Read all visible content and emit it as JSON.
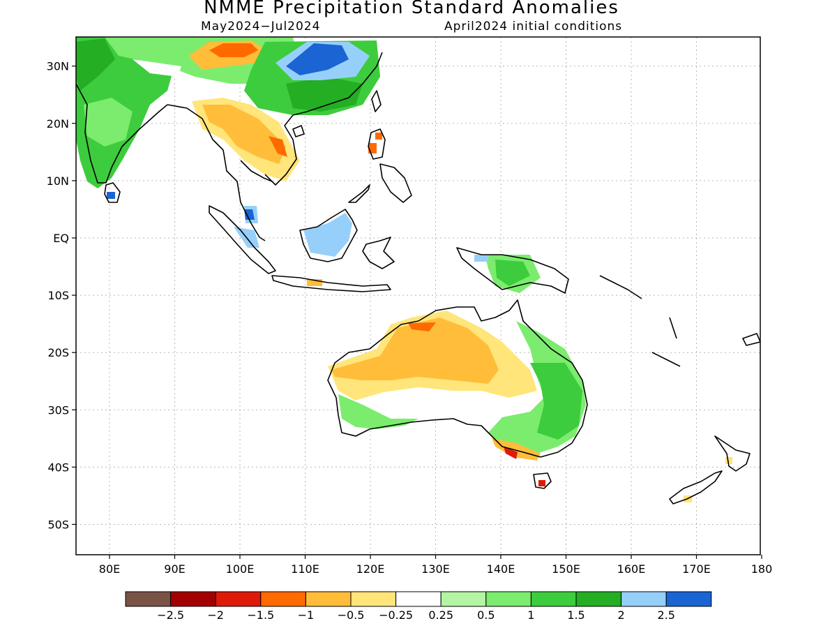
{
  "title": "NMME Precipitation Standard Anomalies",
  "period": "May2024−Jul2024",
  "init": "April2024 initial conditions",
  "lon_labels": [
    "80E",
    "90E",
    "100E",
    "110E",
    "120E",
    "130E",
    "140E",
    "150E",
    "160E",
    "170E",
    "180"
  ],
  "lat_labels": [
    "30N",
    "20N",
    "10N",
    "EQ",
    "10S",
    "20S",
    "30S",
    "40S",
    "50S"
  ],
  "legend": {
    "colors": [
      "#7a5246",
      "#a30000",
      "#de1a0a",
      "#ff6a00",
      "#ffbd3a",
      "#ffe57a",
      "#ffffff",
      "#b3f5a5",
      "#7bec6e",
      "#3dcc3d",
      "#23ae23",
      "#96d0fa",
      "#1a64d4"
    ],
    "labels": [
      "−2.5",
      "−2",
      "−1.5",
      "−1",
      "−0.5",
      "−0.25",
      "0.25",
      "0.5",
      "1",
      "1.5",
      "2",
      "2.5"
    ]
  }
}
